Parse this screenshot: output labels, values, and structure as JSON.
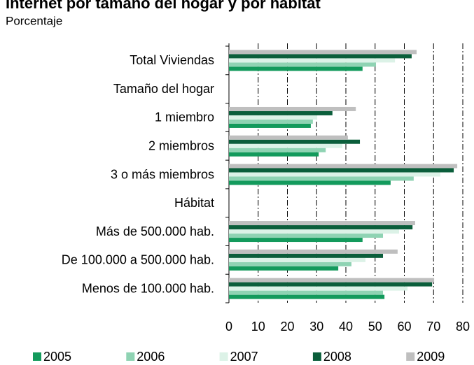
{
  "chart_data": {
    "type": "bar",
    "orientation": "horizontal",
    "title": "Internet por tamaño del hogar y por hábitat",
    "subtitle": "Porcentaje",
    "categories": [
      "Total Viviendas",
      "Tamaño del hogar",
      "1 miembro",
      "2 miembros",
      "3 o más miembros",
      "Hábitat",
      "Más de 500.000 hab.",
      "De 100.000 a 500.000 hab.",
      "Menos de 100.000 hab."
    ],
    "series": [
      {
        "name": "2005",
        "color": "#139a5c",
        "values": [
          45.7,
          null,
          28.0,
          30.7,
          55.3,
          null,
          45.7,
          37.4,
          53.2
        ]
      },
      {
        "name": "2006",
        "color": "#8fd3b3",
        "values": [
          50.3,
          null,
          28.7,
          33.1,
          63.2,
          null,
          52.7,
          41.9,
          52.7
        ]
      },
      {
        "name": "2007",
        "color": "#dcf2e7",
        "values": [
          56.8,
          null,
          30.2,
          38.8,
          72.3,
          null,
          58.2,
          46.7,
          61.1
        ]
      },
      {
        "name": "2008",
        "color": "#0b5e3b",
        "values": [
          62.5,
          null,
          35.4,
          44.8,
          76.9,
          null,
          62.8,
          52.7,
          69.5
        ]
      },
      {
        "name": "2009",
        "color": "#bfbfbf",
        "values": [
          64.2,
          null,
          43.4,
          40.7,
          78.1,
          null,
          63.7,
          57.7,
          70.2
        ]
      }
    ],
    "xlim": [
      0,
      80
    ],
    "xticks": [
      0,
      10,
      20,
      30,
      40,
      50,
      60,
      70,
      80
    ],
    "grid": true,
    "legend": "bottom"
  }
}
